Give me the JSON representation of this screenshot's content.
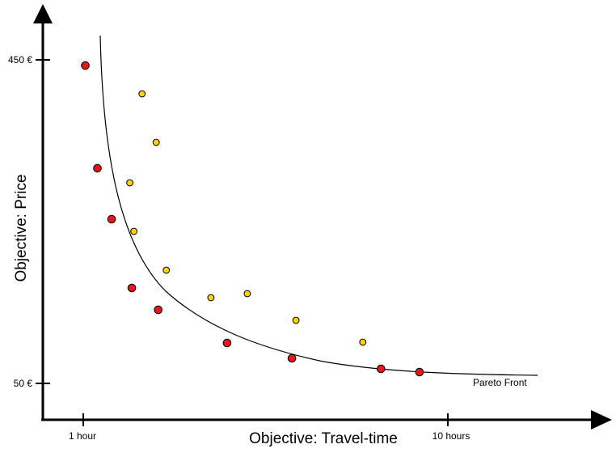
{
  "axes": {
    "x": {
      "label": "Objective: Travel-time",
      "ticks": [
        "1 hour",
        "10 hours"
      ]
    },
    "y": {
      "label": "Objective: Price",
      "ticks": [
        "450 €",
        "50 €"
      ]
    }
  },
  "curve": {
    "label": "Pareto Front"
  },
  "colors": {
    "pareto_point": "#e8161b",
    "dominated_point": "#ffd500",
    "outline": "#000000"
  },
  "chart_data": {
    "type": "scatter",
    "xlim": [
      1,
      10
    ],
    "ylim": [
      50,
      450
    ],
    "series": [
      {
        "x": [
          1.05,
          1.35,
          1.7,
          2.2,
          2.85,
          4.55,
          6.15,
          8.35,
          9.3
        ],
        "y": [
          443,
          316,
          253,
          168,
          141,
          100,
          81,
          68,
          64
        ]
      },
      {
        "x": [
          2.45,
          2.8,
          2.15,
          2.25,
          3.05,
          4.15,
          5.05,
          6.25,
          7.9
        ],
        "y": [
          408,
          348,
          298,
          238,
          190,
          156,
          161,
          128,
          101
        ]
      }
    ]
  }
}
